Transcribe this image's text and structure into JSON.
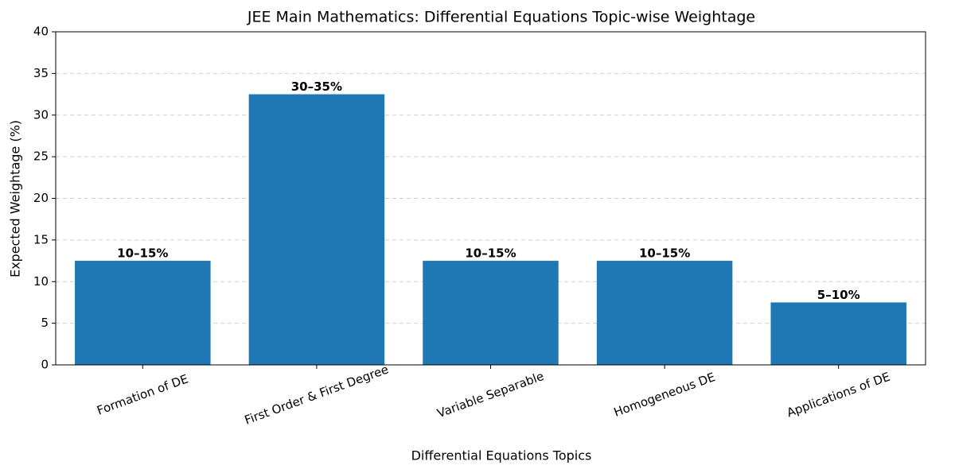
{
  "chart_data": {
    "type": "bar",
    "title": "JEE Main Mathematics: Differential Equations Topic-wise Weightage",
    "x_label": "Differential Equations Topics",
    "y_label": "Expected Weightage (%)",
    "categories": [
      "Formation of DE",
      "First Order & First Degree",
      "Variable Separable",
      "Homogeneous DE",
      "Applications of DE"
    ],
    "values": [
      12.5,
      32.5,
      12.5,
      12.5,
      7.5
    ],
    "value_labels": [
      "10–15%",
      "30–35%",
      "10–15%",
      "10–15%",
      "5–10%"
    ],
    "color": "#1f77b4",
    "ylim": [
      0,
      40
    ],
    "yticks": [
      0,
      5,
      10,
      15,
      20,
      25,
      30,
      35,
      40
    ],
    "grid": true
  }
}
